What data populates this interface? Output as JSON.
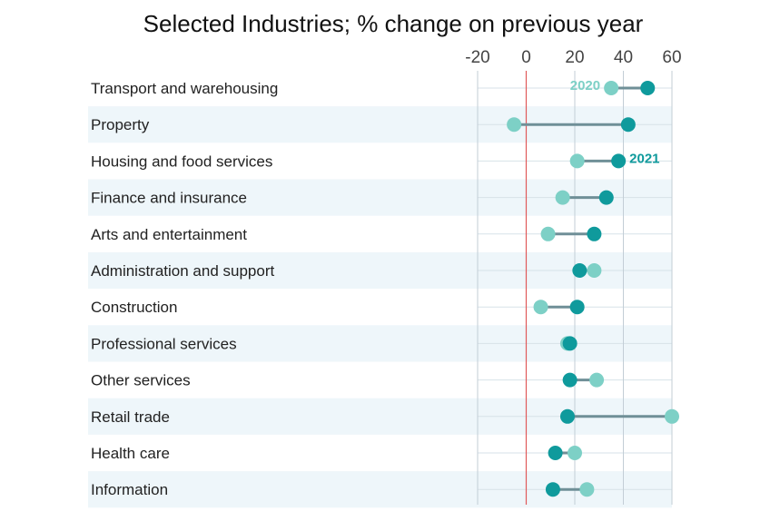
{
  "chart_data": {
    "type": "dumbbell",
    "title": "Selected Industries; % change on previous year",
    "categories": [
      "Transport and warehousing",
      "Property",
      "Housing and food services",
      "Finance and insurance",
      "Arts and entertainment",
      "Administration and support",
      "Construction",
      "Professional services",
      "Other services",
      "Retail trade",
      "Health care",
      "Information"
    ],
    "series": [
      {
        "name": "2020",
        "color": "#7dd0c6",
        "values": [
          35,
          -5,
          21,
          15,
          9,
          28,
          6,
          17,
          29,
          60,
          20,
          25
        ]
      },
      {
        "name": "2021",
        "color": "#0f9a9c",
        "values": [
          50,
          42,
          38,
          33,
          28,
          22,
          21,
          18,
          18,
          17,
          12,
          11
        ]
      }
    ],
    "xlim": [
      -20,
      60
    ],
    "xticks": [
      "-20",
      "0",
      "20",
      "40",
      "60"
    ],
    "xtick_values": [
      -20,
      0,
      20,
      40,
      60
    ],
    "reference_line": 0,
    "connector_color": "#6f8f97",
    "reference_color": "#e05a5a",
    "band_color": "#eef6fa",
    "grid": true
  }
}
